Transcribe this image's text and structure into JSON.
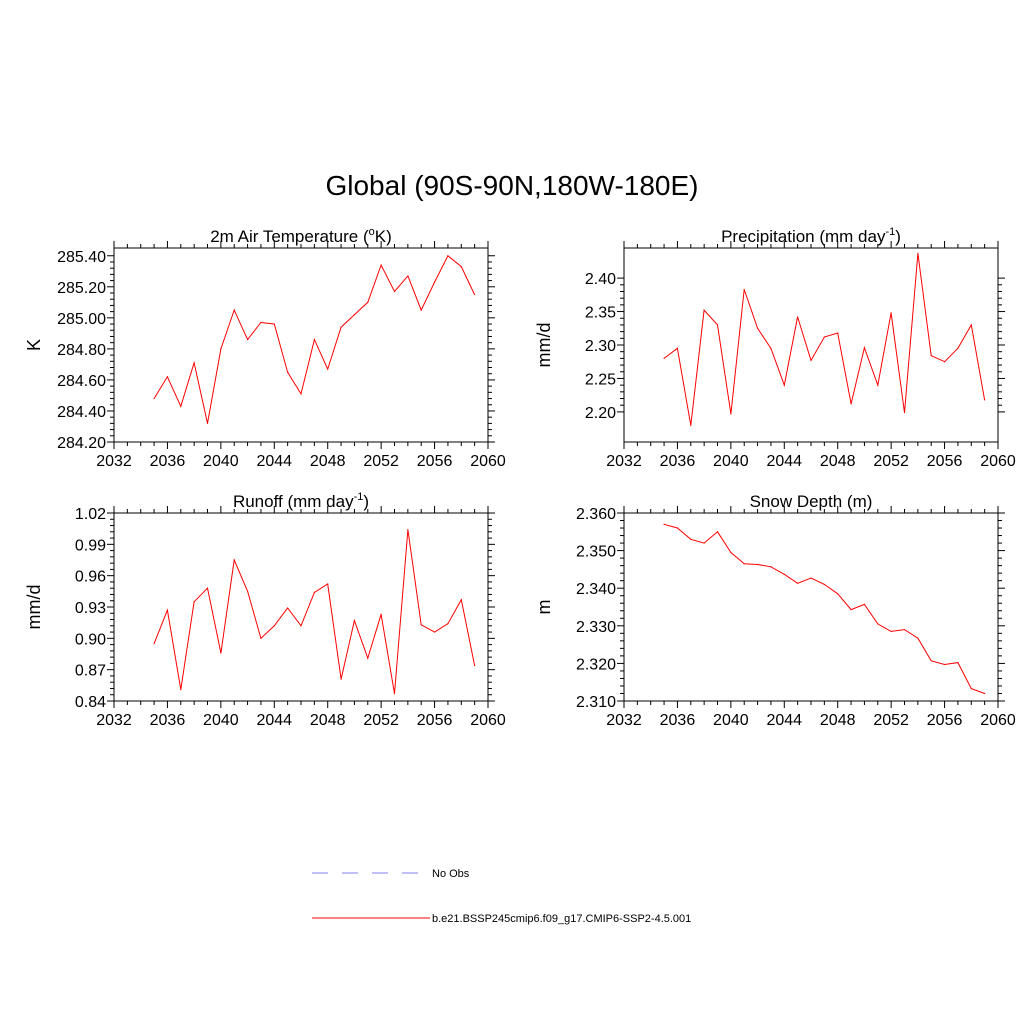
{
  "title": "Global (90S-90N,180W-180E)",
  "legend": {
    "entries": [
      {
        "label": "No Obs",
        "style": "dashed",
        "color": "#9a9af0"
      },
      {
        "label": "b.e21.BSSP245cmip6.f09_g17.CMIP6-SSP2-4.5.001",
        "style": "solid",
        "color": "#ff0000"
      }
    ]
  },
  "chart_data": [
    {
      "type": "line",
      "title": "2m Air Temperature (°K)",
      "title_main": "2m Air Temperature (",
      "title_sup": "o",
      "title_tail": "K)",
      "ylabel": "K",
      "xlim": [
        2032,
        2060
      ],
      "ylim": [
        284.2,
        285.45
      ],
      "xticks": [
        2032,
        2036,
        2040,
        2044,
        2048,
        2052,
        2056,
        2060
      ],
      "yticks": [
        "284.20",
        "284.40",
        "284.60",
        "284.80",
        "285.00",
        "285.20",
        "285.40"
      ],
      "ytick_values": [
        284.2,
        284.4,
        284.6,
        284.8,
        285.0,
        285.2,
        285.4
      ],
      "series": [
        {
          "color": "#ff0000",
          "x": [
            2035,
            2036,
            2037,
            2038,
            2039,
            2040,
            2041,
            2042,
            2043,
            2044,
            2045,
            2046,
            2047,
            2048,
            2049,
            2050,
            2051,
            2052,
            2053,
            2054,
            2055,
            2056,
            2057,
            2058,
            2059
          ],
          "values": [
            284.48,
            284.62,
            284.43,
            284.71,
            284.32,
            284.8,
            285.05,
            284.86,
            284.97,
            284.96,
            284.65,
            284.51,
            284.86,
            284.67,
            284.94,
            285.02,
            285.1,
            285.34,
            285.17,
            285.27,
            285.05,
            285.23,
            285.4,
            285.33,
            285.15
          ]
        }
      ]
    },
    {
      "type": "line",
      "title": "Precipitation (mm day-1)",
      "title_main": "Precipitation (mm day",
      "title_sup": "-1",
      "title_tail": ")",
      "ylabel": "mm/d",
      "xlim": [
        2032,
        2060
      ],
      "ylim": [
        2.155,
        2.445
      ],
      "xticks": [
        2032,
        2036,
        2040,
        2044,
        2048,
        2052,
        2056,
        2060
      ],
      "yticks": [
        "2.20",
        "2.25",
        "2.30",
        "2.35",
        "2.40"
      ],
      "ytick_values": [
        2.2,
        2.25,
        2.3,
        2.35,
        2.4
      ],
      "series": [
        {
          "color": "#ff0000",
          "x": [
            2035,
            2036,
            2037,
            2038,
            2039,
            2040,
            2041,
            2042,
            2043,
            2044,
            2045,
            2046,
            2047,
            2048,
            2049,
            2050,
            2051,
            2052,
            2053,
            2054,
            2055,
            2056,
            2057,
            2058,
            2059
          ],
          "values": [
            2.28,
            2.295,
            2.18,
            2.352,
            2.33,
            2.197,
            2.383,
            2.325,
            2.295,
            2.24,
            2.342,
            2.277,
            2.312,
            2.318,
            2.212,
            2.296,
            2.24,
            2.348,
            2.199,
            2.437,
            2.284,
            2.275,
            2.295,
            2.33,
            2.218
          ]
        }
      ]
    },
    {
      "type": "line",
      "title": "Runoff (mm day-1)",
      "title_main": "Runoff (mm day",
      "title_sup": "-1",
      "title_tail": ")",
      "ylabel": "mm/d",
      "xlim": [
        2032,
        2060
      ],
      "ylim": [
        0.84,
        1.02
      ],
      "xticks": [
        2032,
        2036,
        2040,
        2044,
        2048,
        2052,
        2056,
        2060
      ],
      "yticks": [
        "0.84",
        "0.87",
        "0.90",
        "0.93",
        "0.96",
        "0.99",
        "1.02"
      ],
      "ytick_values": [
        0.84,
        0.87,
        0.9,
        0.93,
        0.96,
        0.99,
        1.02
      ],
      "series": [
        {
          "color": "#ff0000",
          "x": [
            2035,
            2036,
            2037,
            2038,
            2039,
            2040,
            2041,
            2042,
            2043,
            2044,
            2045,
            2046,
            2047,
            2048,
            2049,
            2050,
            2051,
            2052,
            2053,
            2054,
            2055,
            2056,
            2057,
            2058,
            2059
          ],
          "values": [
            0.895,
            0.927,
            0.851,
            0.935,
            0.948,
            0.886,
            0.975,
            0.945,
            0.9,
            0.912,
            0.929,
            0.912,
            0.944,
            0.952,
            0.861,
            0.917,
            0.881,
            0.923,
            0.847,
            1.004,
            0.913,
            0.906,
            0.914,
            0.937,
            0.874
          ]
        }
      ]
    },
    {
      "type": "line",
      "title": "Snow Depth (m)",
      "title_main": "Snow Depth (m)",
      "title_sup": "",
      "title_tail": "",
      "ylabel": "m",
      "xlim": [
        2032,
        2060
      ],
      "ylim": [
        2.31,
        2.36
      ],
      "xticks": [
        2032,
        2036,
        2040,
        2044,
        2048,
        2052,
        2056,
        2060
      ],
      "yticks": [
        "2.310",
        "2.320",
        "2.330",
        "2.340",
        "2.350",
        "2.360"
      ],
      "ytick_values": [
        2.31,
        2.32,
        2.33,
        2.34,
        2.35,
        2.36
      ],
      "series": [
        {
          "color": "#ff0000",
          "x": [
            2035,
            2036,
            2037,
            2038,
            2039,
            2040,
            2041,
            2042,
            2043,
            2044,
            2045,
            2046,
            2047,
            2048,
            2049,
            2050,
            2051,
            2052,
            2053,
            2054,
            2055,
            2056,
            2057,
            2058,
            2059
          ],
          "values": [
            2.357,
            2.356,
            2.353,
            2.352,
            2.355,
            2.3495,
            2.3465,
            2.3463,
            2.3457,
            2.3437,
            2.3413,
            2.3427,
            2.341,
            2.3385,
            2.3343,
            2.3357,
            2.3305,
            2.3285,
            2.329,
            2.3267,
            2.3207,
            2.3197,
            2.3202,
            2.3133,
            2.312
          ]
        }
      ]
    }
  ]
}
